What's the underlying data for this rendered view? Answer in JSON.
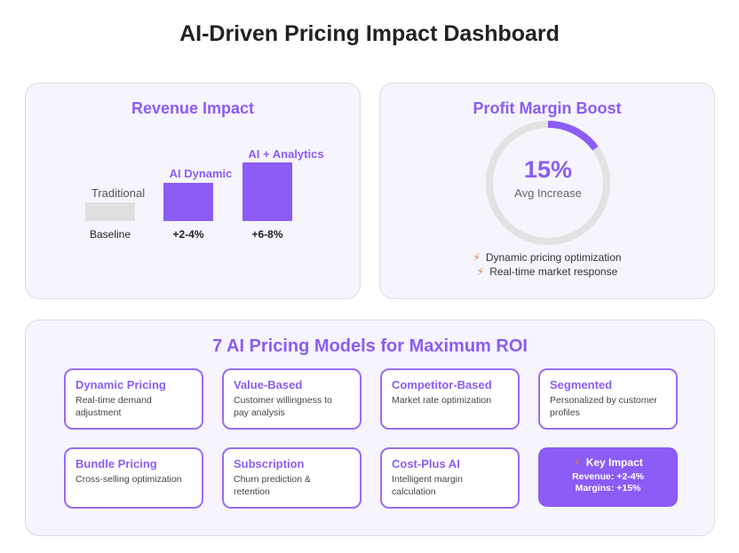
{
  "title": "AI-Driven Pricing Impact Dashboard",
  "revenue": {
    "title": "Revenue Impact",
    "bars": [
      {
        "top_label": "Traditional",
        "bottom_label": "Baseline",
        "color": "#e0e0e0"
      },
      {
        "top_label": "AI Dynamic",
        "bottom_label": "+2-4%",
        "color": "#8b5cf6"
      },
      {
        "top_label": "AI + Analytics",
        "bottom_label": "+6-8%",
        "color": "#8b5cf6"
      }
    ]
  },
  "profit": {
    "title": "Profit Margin Boost",
    "value": "15%",
    "subtitle": "Avg Increase",
    "fill_fraction": 0.15,
    "bullets": [
      "Dynamic pricing optimization",
      "Real-time market response"
    ],
    "bullet_icon": "lightning-icon"
  },
  "models": {
    "title": "7 AI Pricing Models for Maximum ROI",
    "items": [
      {
        "name": "Dynamic Pricing",
        "desc": "Real-time demand adjustment"
      },
      {
        "name": "Value-Based",
        "desc": "Customer willingness to pay analysis"
      },
      {
        "name": "Competitor-Based",
        "desc": "Market rate optimization"
      },
      {
        "name": "Segmented",
        "desc": "Personalized by customer profiles"
      },
      {
        "name": "Bundle Pricing",
        "desc": "Cross-selling optimization"
      },
      {
        "name": "Subscription",
        "desc": "Churn prediction & retention"
      },
      {
        "name": "Cost-Plus AI",
        "desc": "Intelligent margin calculation"
      }
    ],
    "impact": {
      "title": "Key Impact",
      "revenue": "Revenue: +2-4%",
      "margins": "Margins: +15%",
      "icon": "lightning-icon"
    }
  },
  "colors": {
    "accent": "#8b5cf6",
    "card_bg": "#f6f4fd",
    "bolt": "#f07a3d",
    "track": "#e2e2e2"
  }
}
